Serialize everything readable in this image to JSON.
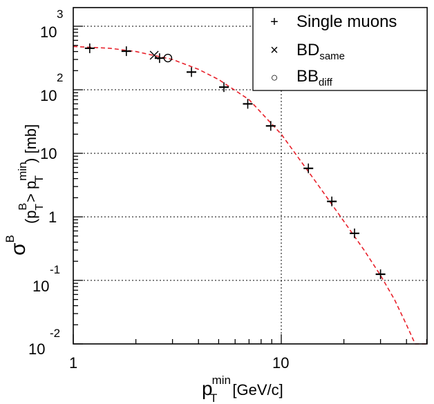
{
  "chart_data": {
    "type": "scatter",
    "title": "",
    "xlabel": "p_T^min [GeV/c]",
    "ylabel": "σ^B (p_T^B > p_T^min) [mb]",
    "xscale": "log",
    "yscale": "log",
    "xlim": [
      1,
      50
    ],
    "ylim": [
      0.01,
      1950
    ],
    "grid": true,
    "legend_position": "upper right",
    "x_ticks": [
      "1",
      "10"
    ],
    "y_ticks": [
      "10^-2",
      "10^-1",
      "1",
      "10",
      "10^2",
      "10^3"
    ],
    "series": [
      {
        "name": "Single muons",
        "marker": "+",
        "x": [
          1.2,
          1.8,
          2.6,
          3.7,
          5.3,
          6.9,
          8.9,
          13.5,
          17.5,
          22.5,
          30
        ],
        "y": [
          450,
          405,
          315,
          190,
          110,
          60,
          27,
          5.8,
          1.75,
          0.55,
          0.125
        ]
      },
      {
        "name": "BD_same",
        "marker": "x",
        "x": [
          2.45
        ],
        "y": [
          350
        ]
      },
      {
        "name": "BB_diff",
        "marker": "o",
        "x": [
          2.85
        ],
        "y": [
          316
        ]
      },
      {
        "name": "fit",
        "style": "dashed",
        "color": "#e8202a",
        "x": [
          1.0,
          1.5,
          2.0,
          3.0,
          4.0,
          5.0,
          7.0,
          10.0,
          15.0,
          20.0,
          25.0,
          30.0,
          35.0,
          40.0,
          44.0
        ],
        "y": [
          480,
          450,
          400,
          300,
          210,
          145,
          70,
          20,
          3.2,
          0.85,
          0.3,
          0.12,
          0.05,
          0.02,
          0.01
        ]
      }
    ]
  },
  "labels": {
    "x_tick_1": "1",
    "x_tick_10": "10",
    "y_base": "10",
    "y_one": "1",
    "exp_3": "3",
    "exp_2": "2",
    "exp_m1": "-1",
    "exp_m2": "-2",
    "x_title_main": "p",
    "x_title_sup": "min",
    "x_title_sub": "T",
    "x_title_unit": "[GeV/c]",
    "y_sigma": "σ",
    "y_sigma_sup": "B",
    "y_paren_open": "(p",
    "y_pt_sup": "B",
    "y_pt_sub": "T",
    "y_gt": "> p",
    "y_min_sup": "min",
    "y_min_sub": "T",
    "y_close_unit": ") [mb]"
  },
  "legend": {
    "items": [
      {
        "symbol": "+",
        "label": "Single muons",
        "sub": ""
      },
      {
        "symbol": "×",
        "label": "BD",
        "sub": "same"
      },
      {
        "symbol": "○",
        "label": "BB",
        "sub": "diff"
      }
    ]
  },
  "colors": {
    "fit": "#e8202a",
    "axis": "#000000",
    "grid": "#000000"
  }
}
